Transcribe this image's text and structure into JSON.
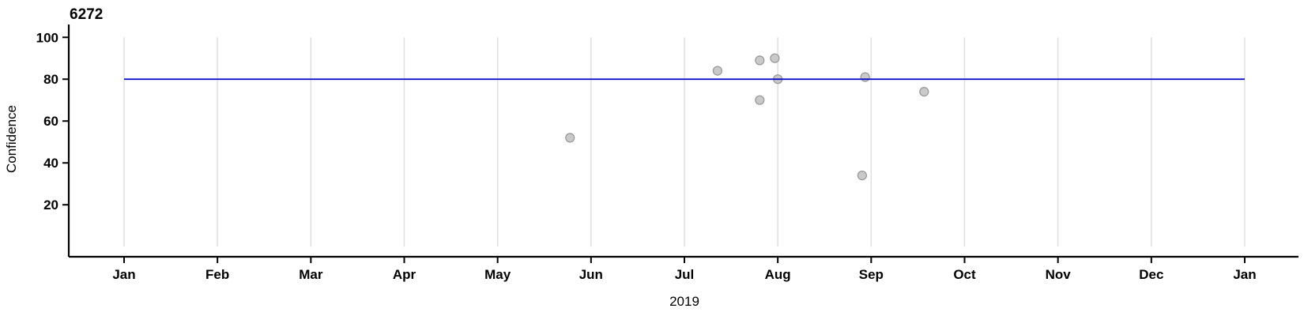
{
  "chart_data": {
    "type": "scatter",
    "title": "6272",
    "xlabel": "2019",
    "ylabel": "Confidence",
    "x_tick_labels": [
      "Jan",
      "Feb",
      "Mar",
      "Apr",
      "May",
      "Jun",
      "Jul",
      "Aug",
      "Sep",
      "Oct",
      "Nov",
      "Dec",
      "Jan"
    ],
    "y_ticks": [
      20,
      40,
      60,
      80,
      100
    ],
    "xlim": [
      "2019-01-01",
      "2020-01-01"
    ],
    "ylim": [
      0,
      106
    ],
    "grid": "vertical-monthly-gridlines",
    "legend": "none",
    "points": [
      {
        "date": "2019-05-25",
        "value": 52
      },
      {
        "date": "2019-07-12",
        "value": 84
      },
      {
        "date": "2019-07-26",
        "value": 89
      },
      {
        "date": "2019-07-31",
        "value": 90
      },
      {
        "date": "2019-08-01",
        "value": 80
      },
      {
        "date": "2019-07-26",
        "value": 70
      },
      {
        "date": "2019-08-30",
        "value": 81
      },
      {
        "date": "2019-08-29",
        "value": 34
      },
      {
        "date": "2019-09-18",
        "value": 74
      }
    ],
    "reference_line": {
      "value": 80,
      "orientation": "horizontal"
    },
    "colors": {
      "reference_line": "#0000cc",
      "point_fill": "#c9c9c9",
      "point_stroke": "#969696",
      "gridline": "#e0e0e0",
      "axis": "#000000"
    }
  }
}
